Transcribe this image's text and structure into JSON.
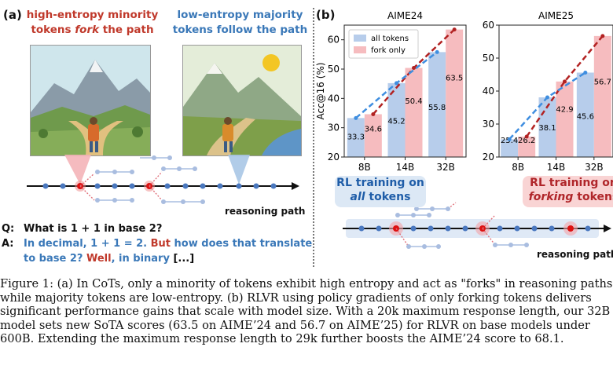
{
  "panel_a": {
    "label": "(a)",
    "heading_left_line1": "high-entropy minority",
    "heading_left_line2_pre": "tokens ",
    "heading_left_line2_em": "fork",
    "heading_left_line2_post": " the path",
    "heading_right_line1": "low-entropy majority",
    "heading_right_line2": "tokens follow the path",
    "path_label": "reasoning path",
    "q_label": "Q:",
    "q_text": "What is 1 + 1 in base 2?",
    "a_label": "A:",
    "a_text1": "In decimal, 1 + 1 = 2. ",
    "a_but": "But",
    "a_text2": " how does that translate",
    "a_text3": "to base 2? ",
    "a_well": "Well",
    "a_text4": ", in binary ",
    "a_ellipsis": "[...]"
  },
  "panel_b": {
    "label": "(b)",
    "box_left_line1": "RL training on",
    "box_left_em": "all",
    "box_left_line2_post": " tokens",
    "box_right_line1": "RL training on",
    "box_right_em": "forking",
    "box_right_line2_post": " tokens",
    "path_label": "reasoning path"
  },
  "colors": {
    "red": "#c0392b",
    "blue": "#3a78b8",
    "bar_blue": "#b7cdeb",
    "bar_red": "#f6bcbf",
    "line_red": "#b22222",
    "line_blue": "#3f8ee0"
  },
  "chart_data": [
    {
      "type": "bar",
      "title": "AIME24",
      "ylabel": "Acc@16 (%)",
      "ylim": [
        20,
        65
      ],
      "yticks": [
        "20",
        "30",
        "40",
        "50",
        "60"
      ],
      "categories": [
        "8B",
        "14B",
        "32B"
      ],
      "series": [
        {
          "name": "all tokens",
          "values": [
            33.3,
            45.2,
            55.8
          ]
        },
        {
          "name": "fork only",
          "values": [
            34.6,
            50.4,
            63.5
          ]
        }
      ],
      "labels_all": [
        "33.3",
        "45.2",
        "55.8"
      ],
      "labels_fork": [
        "34.6",
        "50.4",
        "63.5"
      ],
      "legend": "top-left"
    },
    {
      "type": "bar",
      "title": "AIME25",
      "ylabel": "",
      "ylim": [
        20,
        60
      ],
      "yticks": [
        "20",
        "30",
        "40",
        "50",
        "60"
      ],
      "categories": [
        "8B",
        "14B",
        "32B"
      ],
      "series": [
        {
          "name": "all tokens",
          "values": [
            25.4,
            38.1,
            45.6
          ]
        },
        {
          "name": "fork only",
          "values": [
            26.2,
            42.9,
            56.7
          ]
        }
      ],
      "labels_all": [
        "25.4",
        "38.1",
        "45.6"
      ],
      "labels_fork": [
        "26.2",
        "42.9",
        "56.7"
      ]
    }
  ],
  "caption": {
    "l1": "Figure 1: (a) In CoTs, only a minority of tokens exhibit high entropy and act as \"forks\" in reasoning paths,",
    "l2": "while majority tokens are low-entropy. (b) RLVR using policy gradients of only forking tokens delivers",
    "l3": "significant performance gains that scale with model size. With a 20k maximum response length, our 32B",
    "l4": "model sets new SoTA scores (63.5 on AIME’24 and 56.7 on AIME’25) for RLVR on base models under",
    "l5": "600B. Extending the maximum response length to 29k further boosts the AIME’24 score to 68.1."
  }
}
